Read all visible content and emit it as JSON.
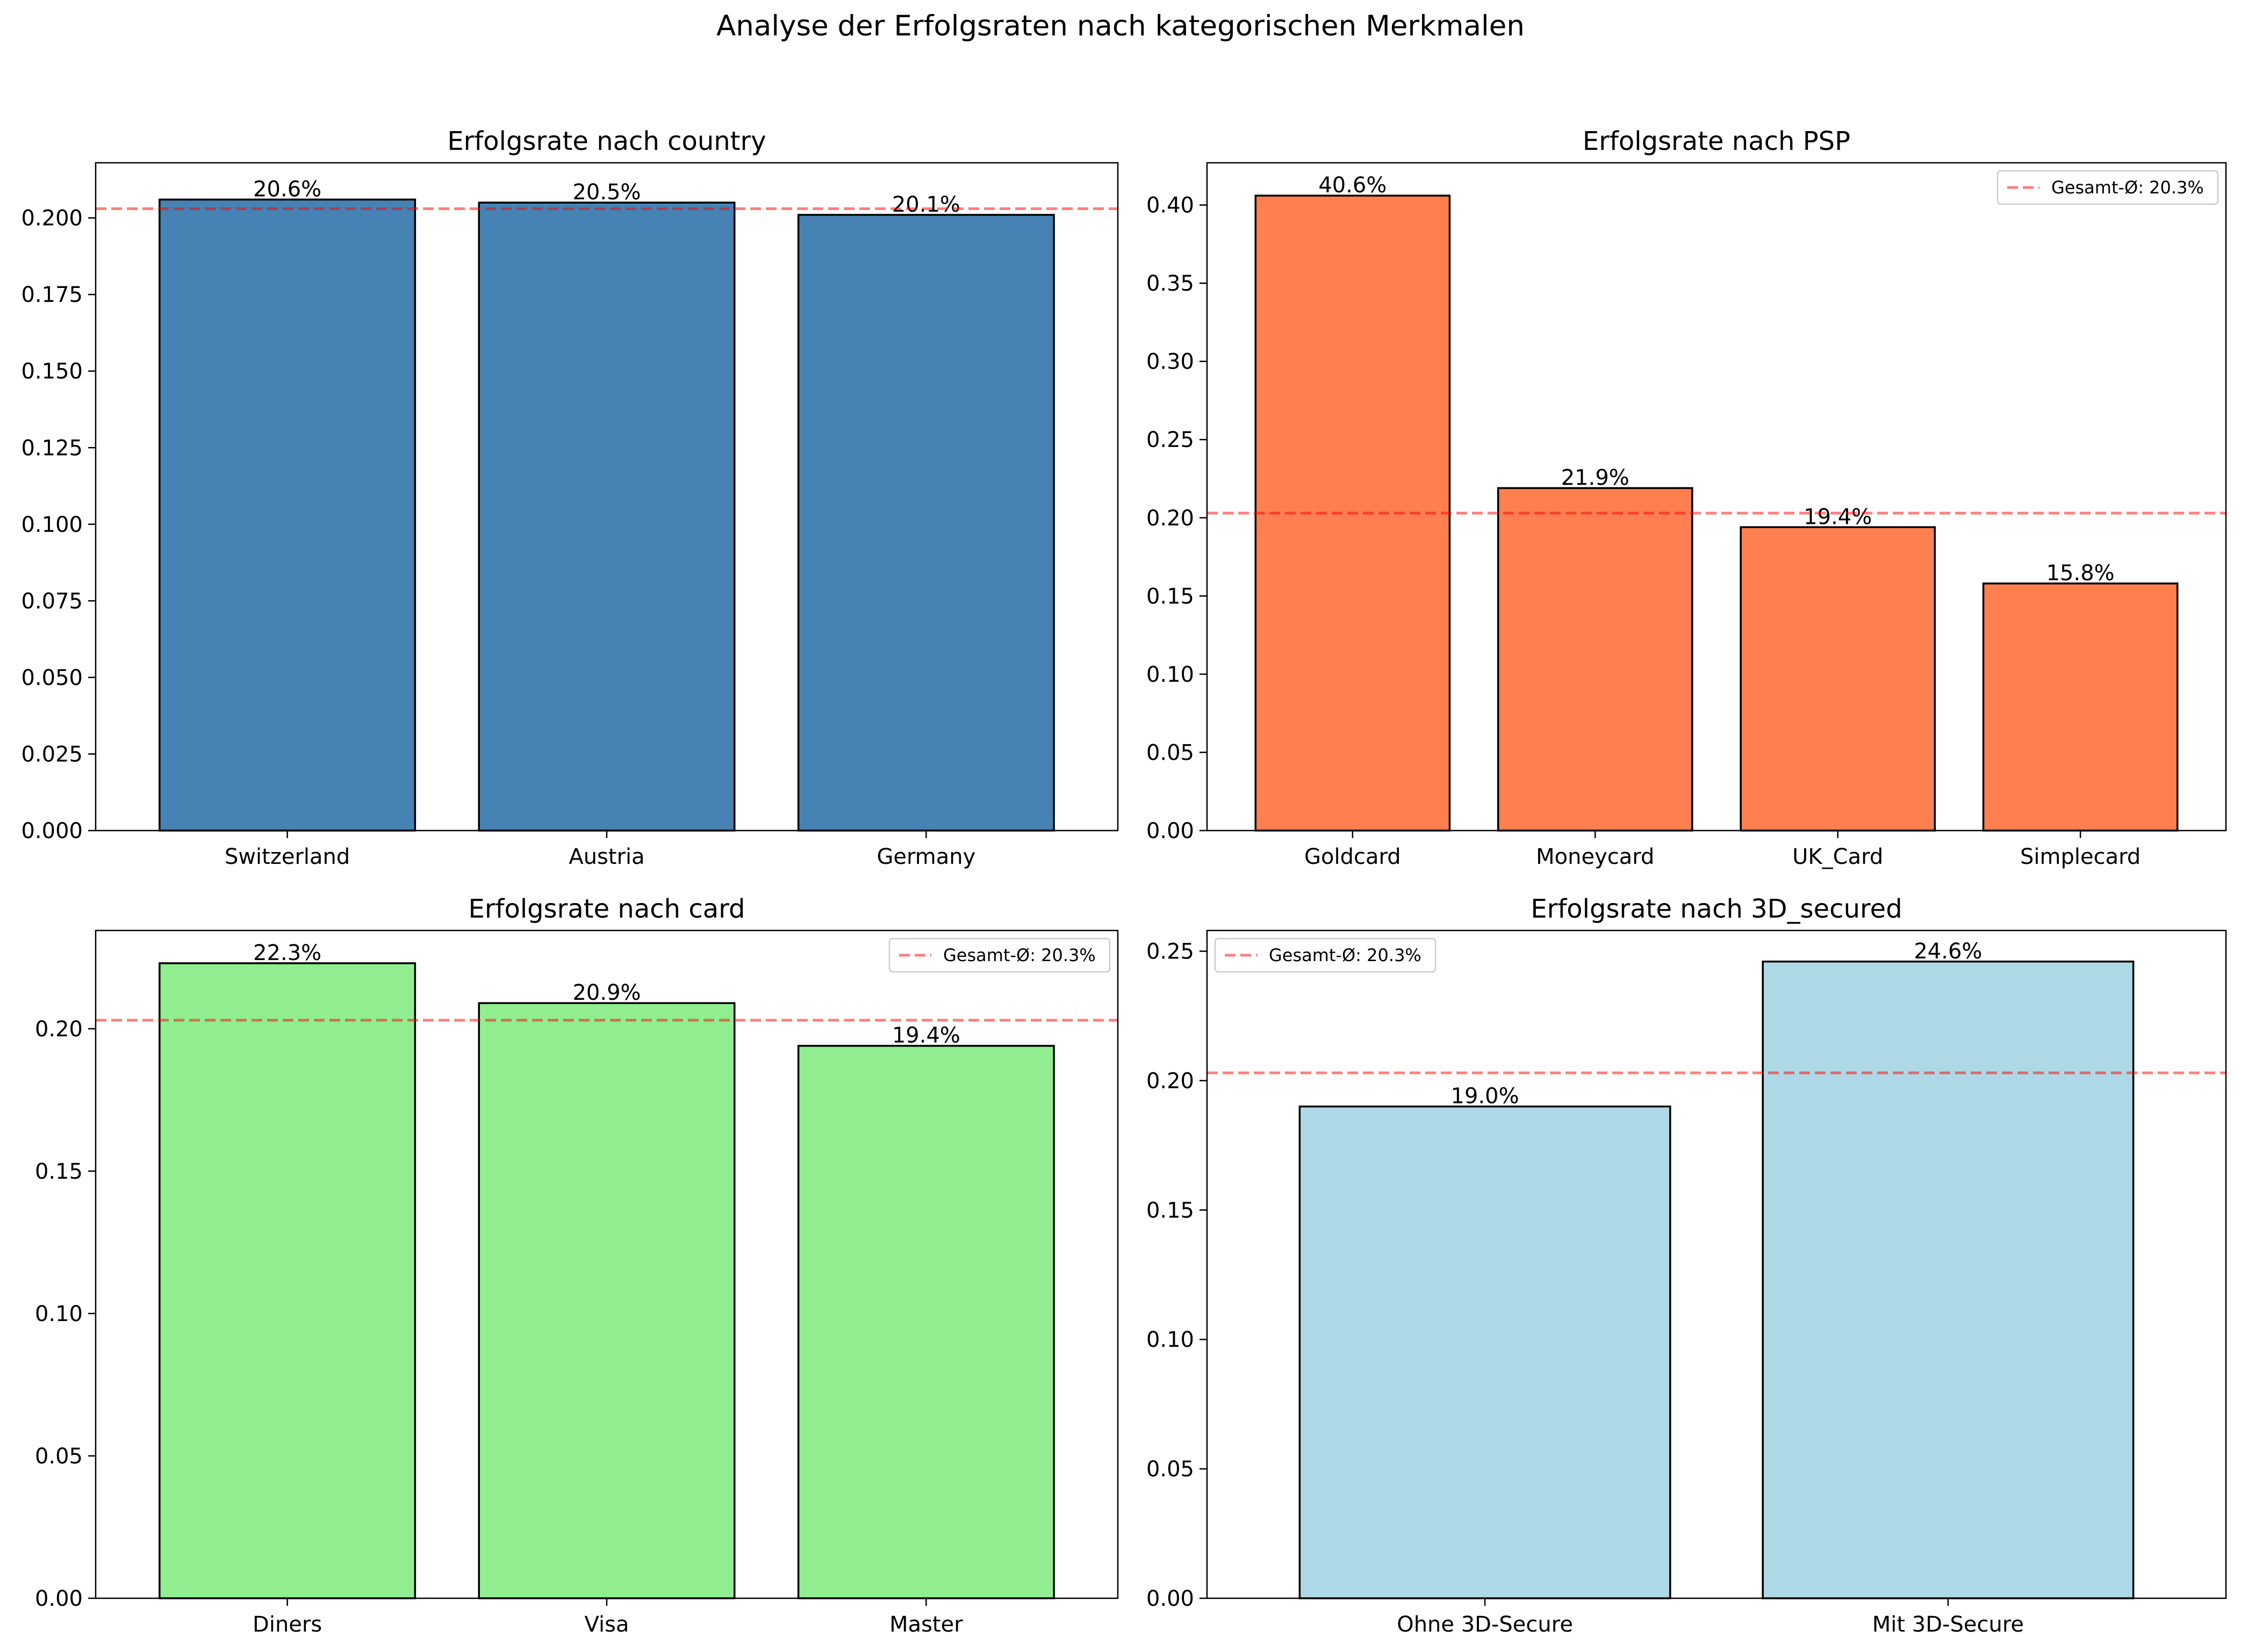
{
  "title": "Analyse der Erfolgsraten nach kategorischen Merkmalen",
  "colors": {
    "ref_line": "#ff0000",
    "bar_edge": "#000000"
  },
  "chart_data": [
    {
      "type": "bar",
      "title": "Erfolgsrate nach country",
      "categories": [
        "Switzerland",
        "Austria",
        "Germany"
      ],
      "values": [
        0.206,
        0.205,
        0.201
      ],
      "data_labels": [
        "20.6%",
        "20.5%",
        "20.1%"
      ],
      "ylim": [
        0,
        0.218
      ],
      "yticks": [
        0.0,
        0.025,
        0.05,
        0.075,
        0.1,
        0.125,
        0.15,
        0.175,
        0.2
      ],
      "ytick_labels": [
        "0.000",
        "0.025",
        "0.050",
        "0.075",
        "0.100",
        "0.125",
        "0.150",
        "0.175",
        "0.200"
      ],
      "reference_line": 0.203,
      "legend": null,
      "color": "#4682b4"
    },
    {
      "type": "bar",
      "title": "Erfolgsrate nach PSP",
      "categories": [
        "Goldcard",
        "Moneycard",
        "UK_Card",
        "Simplecard"
      ],
      "values": [
        0.406,
        0.219,
        0.194,
        0.158
      ],
      "data_labels": [
        "40.6%",
        "21.9%",
        "19.4%",
        "15.8%"
      ],
      "ylim": [
        0,
        0.427
      ],
      "yticks": [
        0.0,
        0.05,
        0.1,
        0.15,
        0.2,
        0.25,
        0.3,
        0.35,
        0.4
      ],
      "ytick_labels": [
        "0.00",
        "0.05",
        "0.10",
        "0.15",
        "0.20",
        "0.25",
        "0.30",
        "0.35",
        "0.40"
      ],
      "reference_line": 0.203,
      "legend": {
        "label": "Gesamt-Ø: 20.3%",
        "position": "upper right"
      },
      "color": "#ff7f50"
    },
    {
      "type": "bar",
      "title": "Erfolgsrate nach card",
      "categories": [
        "Diners",
        "Visa",
        "Master"
      ],
      "values": [
        0.223,
        0.209,
        0.194
      ],
      "data_labels": [
        "22.3%",
        "20.9%",
        "19.4%"
      ],
      "ylim": [
        0,
        0.2345
      ],
      "yticks": [
        0.0,
        0.05,
        0.1,
        0.15,
        0.2
      ],
      "ytick_labels": [
        "0.00",
        "0.05",
        "0.10",
        "0.15",
        "0.20"
      ],
      "reference_line": 0.203,
      "legend": {
        "label": "Gesamt-Ø: 20.3%",
        "position": "upper right"
      },
      "color": "#90ee90"
    },
    {
      "type": "bar",
      "title": "Erfolgsrate nach 3D_secured",
      "categories": [
        "Ohne 3D-Secure",
        "Mit 3D-Secure"
      ],
      "values": [
        0.19,
        0.246
      ],
      "data_labels": [
        "19.0%",
        "24.6%"
      ],
      "ylim": [
        0,
        0.258
      ],
      "yticks": [
        0.0,
        0.05,
        0.1,
        0.15,
        0.2,
        0.25
      ],
      "ytick_labels": [
        "0.00",
        "0.05",
        "0.10",
        "0.15",
        "0.20",
        "0.25"
      ],
      "reference_line": 0.203,
      "legend": {
        "label": "Gesamt-Ø: 20.3%",
        "position": "upper left"
      },
      "color": "#add8e6"
    }
  ]
}
